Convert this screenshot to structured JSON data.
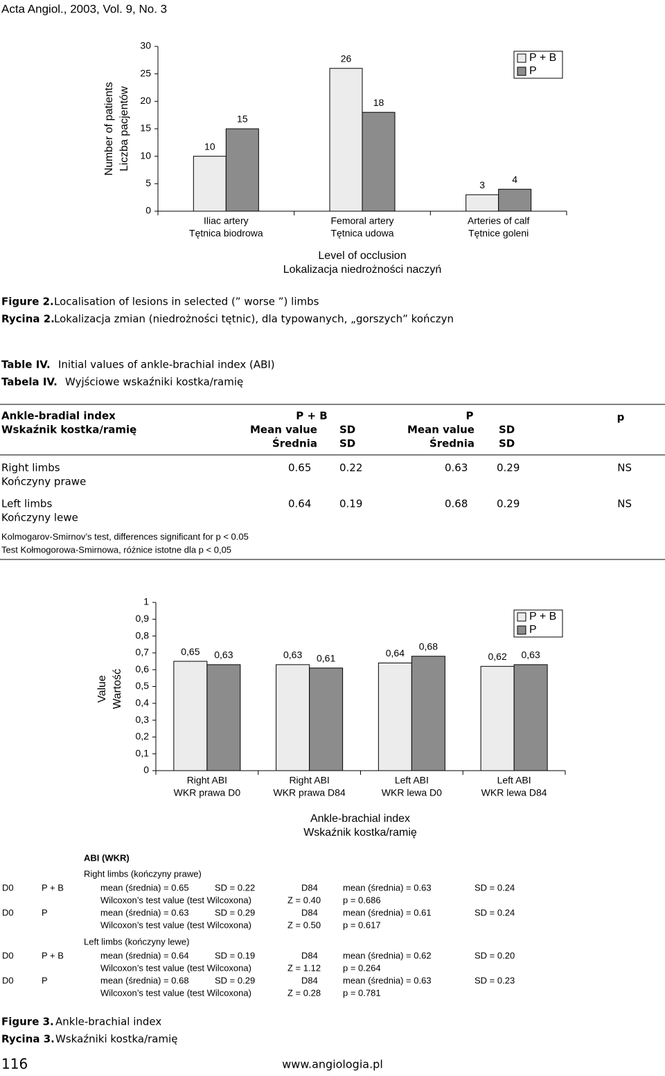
{
  "header": {
    "journal": "Acta Angiol., 2003, Vol. 9, No. 3"
  },
  "chart_data": [
    {
      "type": "bar",
      "ylabel": [
        "Number of patients",
        "Liczba pacjentów"
      ],
      "xlabel": [
        "Level of occlusion",
        "Lokalizacja niedrożności naczyń"
      ],
      "categories": [
        [
          "Iliac artery",
          "Tętnica biodrowa"
        ],
        [
          "Femoral artery",
          "Tętnica udowa"
        ],
        [
          "Arteries of calf",
          "Tętnice goleni"
        ]
      ],
      "series": [
        {
          "name": "P + B",
          "color": "#ececec",
          "values": [
            10,
            26,
            3
          ]
        },
        {
          "name": "P",
          "color": "#8c8c8c",
          "values": [
            15,
            18,
            4
          ]
        }
      ],
      "ylim": [
        0,
        30
      ],
      "yticks": [
        0,
        5,
        10,
        15,
        20,
        25,
        30
      ],
      "grid": false,
      "legend": "top-right"
    },
    {
      "type": "bar",
      "ylabel": [
        "Value",
        "Wartość"
      ],
      "xlabel": [
        "Ankle-brachial index",
        "Wskaźnik kostka/ramię"
      ],
      "categories": [
        [
          "Right ABI",
          "WKR prawa D0"
        ],
        [
          "Right ABI",
          "WKR prawa D84"
        ],
        [
          "Left ABI",
          "WKR lewa D0"
        ],
        [
          "Left ABI",
          "WKR lewa D84"
        ]
      ],
      "series": [
        {
          "name": "P + B",
          "color": "#ececec",
          "values": [
            0.65,
            0.63,
            0.64,
            0.62
          ],
          "value_labels": [
            "0,65",
            "0,63",
            "0,64",
            "0,62"
          ]
        },
        {
          "name": "P",
          "color": "#8c8c8c",
          "values": [
            0.63,
            0.61,
            0.68,
            0.63
          ],
          "value_labels": [
            "0,63",
            "0,61",
            "0,68",
            "0,63"
          ]
        }
      ],
      "ylim": [
        0,
        1
      ],
      "yticks": [
        0,
        {
          "value": 0.1,
          "label": "0,1"
        },
        {
          "value": 0.2,
          "label": "0,2"
        },
        {
          "value": 0.3,
          "label": "0,3"
        },
        {
          "value": 0.4,
          "label": "0,4"
        },
        {
          "value": 0.5,
          "label": "0,5"
        },
        {
          "value": 0.6,
          "label": "0,6"
        },
        {
          "value": 0.7,
          "label": "0,7"
        },
        {
          "value": 0.8,
          "label": "0,8"
        },
        {
          "value": 0.9,
          "label": "0,9"
        },
        1
      ],
      "grid": false,
      "legend": "top-right"
    }
  ],
  "figure2": {
    "label_en": "Figure 2.",
    "caption_en": "Localisation of lesions in selected (” worse ”) limbs",
    "label_pl": "Rycina 2.",
    "caption_pl": "Lokalizacja zmian (niedrożności tętnic), dla typowanych, „gorszych” kończyn"
  },
  "table": {
    "label_en": "Table IV.",
    "caption_en": "Initial values of ankle-brachial index (ABI)",
    "label_pl": "Tabela IV.",
    "caption_pl": "Wyjściowe wskaźniki kostka/ramię",
    "header": {
      "index": [
        "Ankle-bradial index",
        "Wskaźnik kostka/ramię"
      ],
      "group1": "P + B",
      "group2": "P",
      "p": "p",
      "mean": [
        "Mean value",
        "Średnia"
      ],
      "sd": [
        "SD",
        "SD"
      ]
    },
    "rows": [
      {
        "label": [
          "Right limbs",
          "Kończyny prawe"
        ],
        "cells": [
          "0.65",
          "0.22",
          "0.63",
          "0.29",
          "NS"
        ]
      },
      {
        "label": [
          "Left limbs",
          "Kończyny lewe"
        ],
        "cells": [
          "0.64",
          "0.19",
          "0.68",
          "0.29",
          "NS"
        ]
      }
    ],
    "notes": [
      "Kolmogarov-Smirnov’s test, differences significant for p < 0.05",
      "Test Kołmogorowa-Smirnowa, różnice istotne dla p < 0,05"
    ]
  },
  "stats": {
    "title": "ABI (WKR)",
    "sections": [
      {
        "heading": "Right limbs (kończyny prawe)",
        "entries": [
          {
            "day0": "D0",
            "group": "P + B",
            "mean0": "mean (średnia) = 0.65",
            "sd0": "SD = 0.22",
            "day1": "D84",
            "mean1": "mean (średnia) = 0.63",
            "sd1": "SD = 0.24",
            "test": "Wilcoxon’s test value (test Wilcoxona)",
            "z": "Z = 0.40",
            "p": "p = 0.686"
          },
          {
            "day0": "D0",
            "group": "P",
            "mean0": "mean (średnia) = 0.63",
            "sd0": "SD = 0.29",
            "day1": "D84",
            "mean1": "mean (średnia) = 0.61",
            "sd1": "SD = 0.24",
            "test": "Wilcoxon’s test value (test Wilcoxona)",
            "z": "Z = 0.50",
            "p": "p = 0.617"
          }
        ]
      },
      {
        "heading": "Left limbs (kończyny lewe)",
        "entries": [
          {
            "day0": "D0",
            "group": "P + B",
            "mean0": "mean (średnia) = 0.64",
            "sd0": "SD = 0.19",
            "day1": "D84",
            "mean1": "mean (średnia) = 0.62",
            "sd1": "SD = 0.20",
            "test": "Wilcoxon’s test value (test Wilcoxona)",
            "z": "Z = 1.12",
            "p": "p = 0.264"
          },
          {
            "day0": "D0",
            "group": "P",
            "mean0": "mean (średnia) = 0.68",
            "sd0": "SD = 0.29",
            "day1": "D84",
            "mean1": "mean (średnia) = 0.63",
            "sd1": "SD = 0.23",
            "test": "Wilcoxon’s test value (test Wilcoxona)",
            "z": "Z = 0.28",
            "p": "p = 0.781"
          }
        ]
      }
    ]
  },
  "figure3": {
    "label_en": "Figure 3.",
    "caption_en": "Ankle-brachial index",
    "label_pl": "Rycina 3.",
    "caption_pl": "Wskaźniki kostka/ramię"
  },
  "footer": {
    "page": "116",
    "url": "www.angiologia.pl"
  }
}
